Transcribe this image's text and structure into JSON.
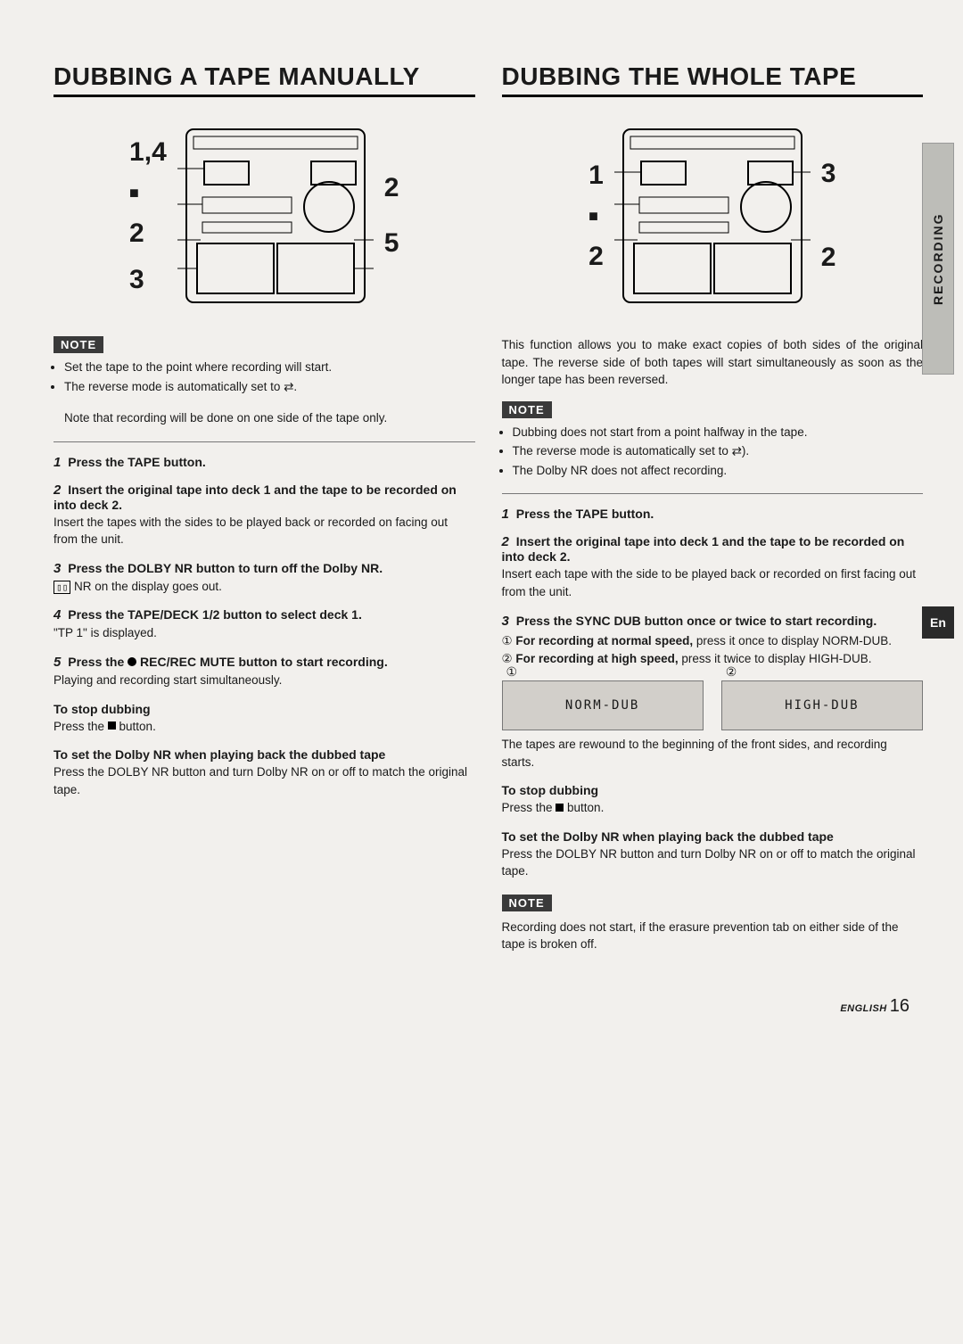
{
  "side_tab": "RECORDING",
  "en_box": "En",
  "footer": {
    "lang": "ENGLISH",
    "page": "16"
  },
  "left": {
    "title": "DUBBING A TAPE MANUALLY",
    "callouts_left": [
      "1,4",
      "■",
      "2",
      "3"
    ],
    "callouts_right": [
      "2",
      "5"
    ],
    "note_label": "NOTE",
    "note_bullets": [
      "Set the tape to the point where recording will start.",
      "The reverse mode is automatically set to ⇄."
    ],
    "note_sub": "Note that recording will be done on one side of the tape only.",
    "steps": [
      {
        "n": "1",
        "title": "Press the TAPE button.",
        "body": ""
      },
      {
        "n": "2",
        "title": "Insert the original tape into deck 1 and the tape to be recorded on into deck 2.",
        "body": "Insert the tapes with the sides to be played back or recorded on facing out from the unit."
      },
      {
        "n": "3",
        "title": "Press the DOLBY NR button to turn off the Dolby NR.",
        "body_html": "<span class='nrbox'>▯▯</span> NR on the display goes out."
      },
      {
        "n": "4",
        "title": "Press the TAPE/DECK 1/2 button to select deck 1.",
        "body": "\"TP 1\" is displayed."
      },
      {
        "n": "5",
        "title_html": "Press the <span class='rec-dot'></span> REC/REC MUTE button to start recording.",
        "body": "Playing and recording start simultaneously."
      }
    ],
    "stop_title": "To stop dubbing",
    "stop_body_html": "Press the <span class='sq'></span> button.",
    "dolby_title": "To set the Dolby NR when playing back the dubbed tape",
    "dolby_body": "Press the DOLBY NR button and turn Dolby NR on or off to match the original tape."
  },
  "right": {
    "title": "DUBBING THE WHOLE TAPE",
    "callouts_left": [
      "1",
      "■",
      "2"
    ],
    "callouts_right": [
      "3",
      "2"
    ],
    "intro": "This function allows you to make exact copies of both sides of the original tape. The reverse side of both tapes will start simultaneously as soon as the longer tape has been reversed.",
    "note_label": "NOTE",
    "note_bullets": [
      "Dubbing does not start from a point halfway in the tape.",
      "The reverse mode is automatically set to ⇄).",
      "The Dolby NR does not affect recording."
    ],
    "steps": [
      {
        "n": "1",
        "title": "Press the TAPE button.",
        "body": ""
      },
      {
        "n": "2",
        "title": "Insert the original tape into deck 1 and the tape to be recorded on into deck 2.",
        "body": "Insert each tape with the side to be played back or recorded on first facing out from the unit."
      },
      {
        "n": "3",
        "title": "Press the SYNC DUB button once or twice to start recording.",
        "sub": [
          {
            "c": "①",
            "bold": "For recording at normal speed,",
            "rest": " press it once to display NORM-DUB."
          },
          {
            "c": "②",
            "bold": "For recording at high speed,",
            "rest": " press it twice to display HIGH-DUB."
          }
        ]
      }
    ],
    "displays": {
      "a_label": "①",
      "a_text": "NORM-DUB",
      "b_label": "②",
      "b_text": "HIGH-DUB"
    },
    "after_display": "The tapes are rewound to the beginning of the front sides, and recording starts.",
    "stop_title": "To stop dubbing",
    "stop_body_html": "Press the <span class='sq'></span> button.",
    "dolby_title": "To set the Dolby NR when playing back the dubbed tape",
    "dolby_body": "Press the DOLBY NR button and turn Dolby NR on or off to match the original tape.",
    "note2_label": "NOTE",
    "note2_body": "Recording does not start, if the erasure prevention tab on either side of the tape is broken off."
  }
}
